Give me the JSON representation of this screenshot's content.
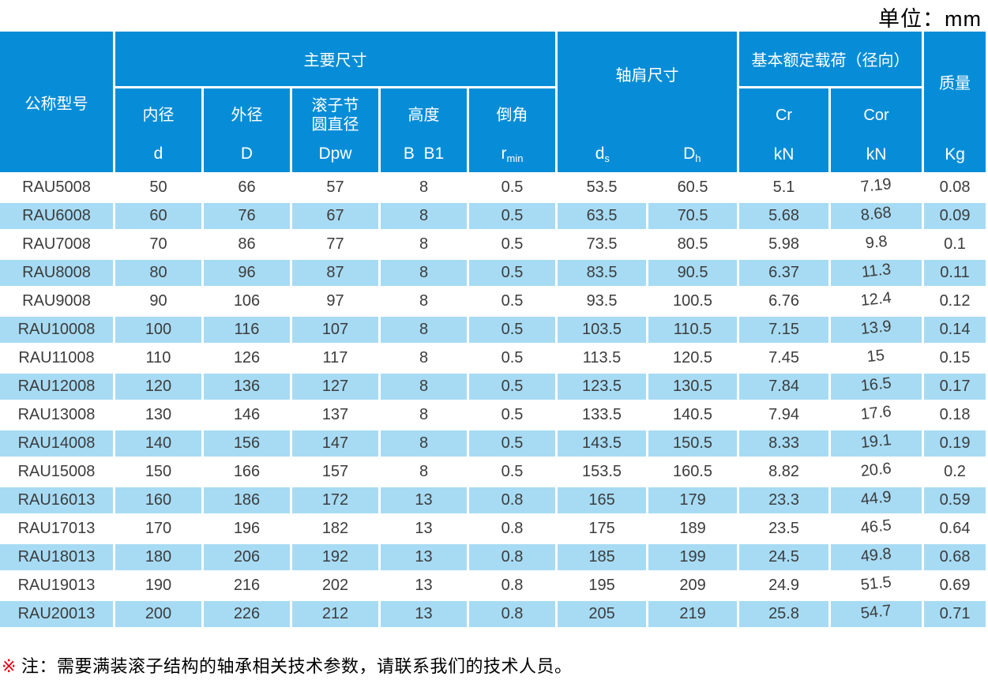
{
  "unit_label": "单位：mm",
  "header": {
    "model": "公称型号",
    "main_dims": "主要尺寸",
    "shoulder": {
      "label": "轴肩尺寸",
      "cols": [
        {
          "sym": "d",
          "sub": "s"
        },
        {
          "sym": "D",
          "sub": "h"
        }
      ]
    },
    "load": {
      "label": "基本额定载荷（径向）",
      "cols": [
        {
          "sym": "Cr",
          "unit": "kN"
        },
        {
          "sym": "Cor",
          "unit": "kN"
        }
      ]
    },
    "mass": {
      "label": "质量",
      "unit": "Kg"
    },
    "sub_headers": [
      {
        "label": "内径",
        "sym": "d",
        "sub": ""
      },
      {
        "label": "外径",
        "sym": "D",
        "sub": ""
      },
      {
        "label": "滚子节\n圆直径",
        "sym": "Dpw",
        "sub": ""
      },
      {
        "label": "高度",
        "sym": "B  B1",
        "sub": ""
      },
      {
        "label": "倒角",
        "sym": "r",
        "sub": "min"
      }
    ]
  },
  "rows": [
    [
      "RAU5008",
      "50",
      "66",
      "57",
      "8",
      "0.5",
      "53.5",
      "60.5",
      "5.1",
      "7.19",
      "0.08"
    ],
    [
      "RAU6008",
      "60",
      "76",
      "67",
      "8",
      "0.5",
      "63.5",
      "70.5",
      "5.68",
      "8.68",
      "0.09"
    ],
    [
      "RAU7008",
      "70",
      "86",
      "77",
      "8",
      "0.5",
      "73.5",
      "80.5",
      "5.98",
      "9.8",
      "0.1"
    ],
    [
      "RAU8008",
      "80",
      "96",
      "87",
      "8",
      "0.5",
      "83.5",
      "90.5",
      "6.37",
      "11.3",
      "0.11"
    ],
    [
      "RAU9008",
      "90",
      "106",
      "97",
      "8",
      "0.5",
      "93.5",
      "100.5",
      "6.76",
      "12.4",
      "0.12"
    ],
    [
      "RAU10008",
      "100",
      "116",
      "107",
      "8",
      "0.5",
      "103.5",
      "110.5",
      "7.15",
      "13.9",
      "0.14"
    ],
    [
      "RAU11008",
      "110",
      "126",
      "117",
      "8",
      "0.5",
      "113.5",
      "120.5",
      "7.45",
      "15",
      "0.15"
    ],
    [
      "RAU12008",
      "120",
      "136",
      "127",
      "8",
      "0.5",
      "123.5",
      "130.5",
      "7.84",
      "16.5",
      "0.17"
    ],
    [
      "RAU13008",
      "130",
      "146",
      "137",
      "8",
      "0.5",
      "133.5",
      "140.5",
      "7.94",
      "17.6",
      "0.18"
    ],
    [
      "RAU14008",
      "140",
      "156",
      "147",
      "8",
      "0.5",
      "143.5",
      "150.5",
      "8.33",
      "19.1",
      "0.19"
    ],
    [
      "RAU15008",
      "150",
      "166",
      "157",
      "8",
      "0.5",
      "153.5",
      "160.5",
      "8.82",
      "20.6",
      "0.2"
    ],
    [
      "RAU16013",
      "160",
      "186",
      "172",
      "13",
      "0.8",
      "165",
      "179",
      "23.3",
      "44.9",
      "0.59"
    ],
    [
      "RAU17013",
      "170",
      "196",
      "182",
      "13",
      "0.8",
      "175",
      "189",
      "23.5",
      "46.5",
      "0.64"
    ],
    [
      "RAU18013",
      "180",
      "206",
      "192",
      "13",
      "0.8",
      "185",
      "199",
      "24.5",
      "49.8",
      "0.68"
    ],
    [
      "RAU19013",
      "190",
      "216",
      "202",
      "13",
      "0.8",
      "195",
      "209",
      "24.9",
      "51.5",
      "0.69"
    ],
    [
      "RAU20013",
      "200",
      "226",
      "212",
      "13",
      "0.8",
      "205",
      "219",
      "25.8",
      "54.7",
      "0.71"
    ]
  ],
  "note": {
    "marker": "※",
    "text": "注：需要满装滚子结构的轴承相关技术参数，请联系我们的技术人员。"
  },
  "colors": {
    "header_blue": "#078dd7",
    "row_blue": "#a7dbf4",
    "text_dark": "#3c3c3c",
    "note_red": "#e60012"
  }
}
